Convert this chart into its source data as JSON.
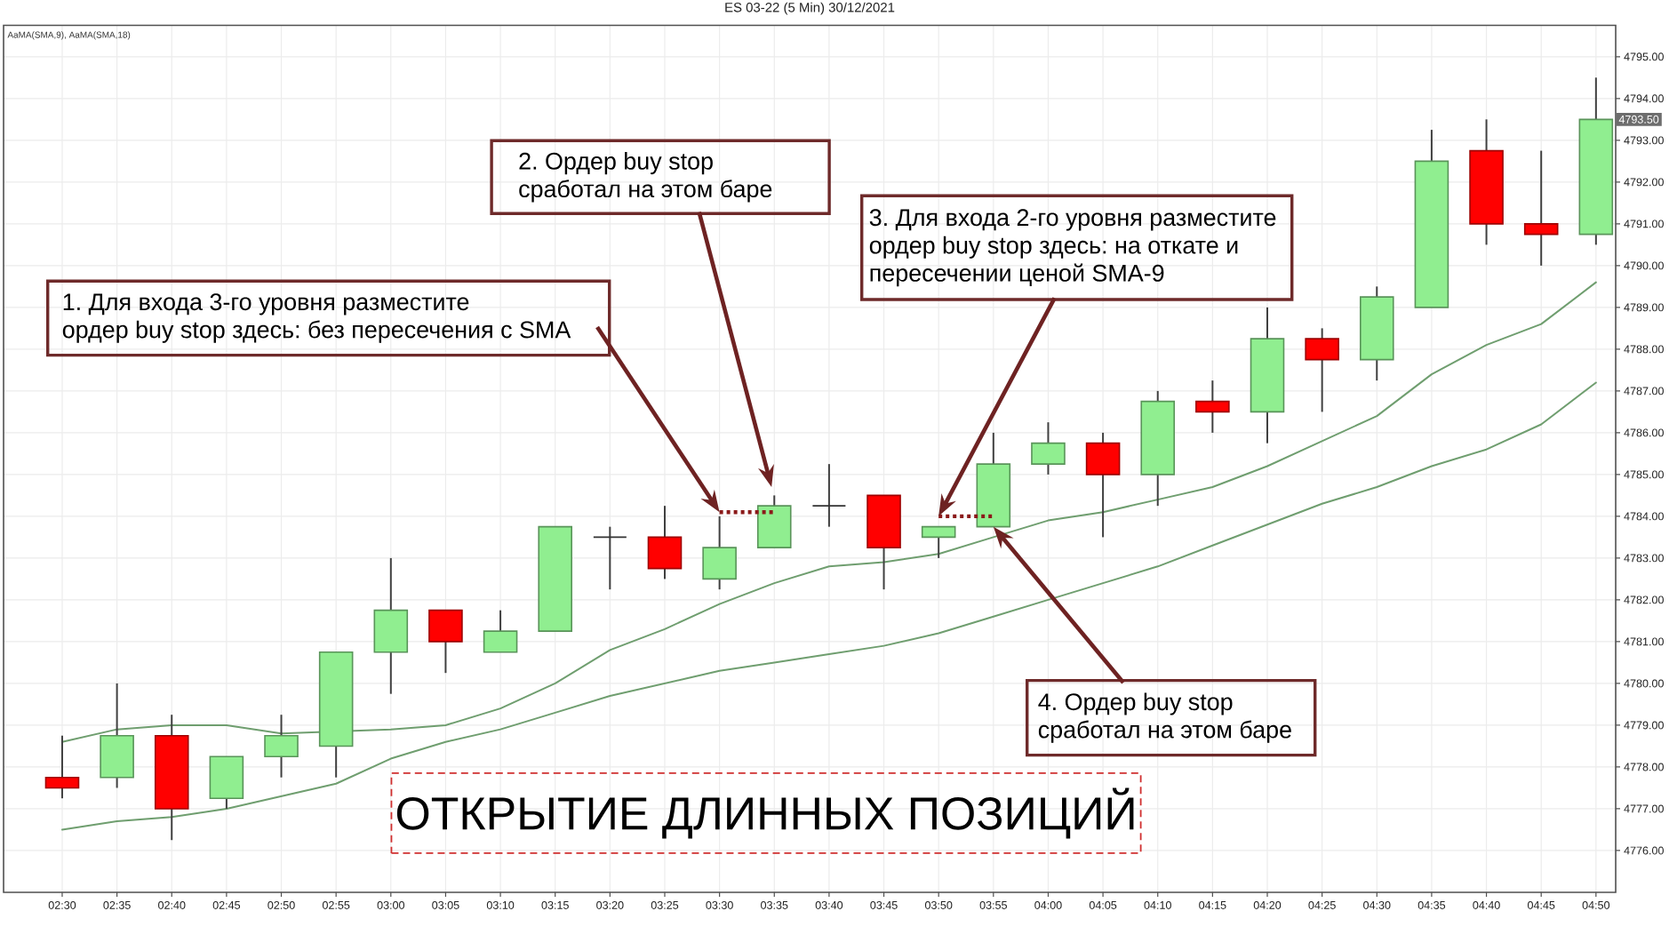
{
  "chart_data": {
    "type": "candlestick",
    "title": "ES 03-22 (5 Min) 30/12/2021",
    "categories": [
      "02:30",
      "02:35",
      "02:40",
      "02:45",
      "02:50",
      "02:55",
      "03:00",
      "03:05",
      "03:10",
      "03:15",
      "03:20",
      "03:25",
      "03:30",
      "03:35",
      "03:40",
      "03:45",
      "03:50",
      "03:55",
      "04:00",
      "04:05",
      "04:10",
      "04:15",
      "04:20",
      "04:25",
      "04:30",
      "04:35",
      "04:40",
      "04:45",
      "04:50"
    ],
    "ohlc": [
      [
        4777.75,
        4778.75,
        4777.25,
        4777.5
      ],
      [
        4777.75,
        4780,
        4777.5,
        4778.75
      ],
      [
        4778.75,
        4779.25,
        4776.25,
        4777
      ],
      [
        4777.25,
        4778.25,
        4777,
        4778.25
      ],
      [
        4778.25,
        4779.25,
        4777.75,
        4778.75
      ],
      [
        4778.5,
        4780.75,
        4777.75,
        4780.75
      ],
      [
        4780.75,
        4783,
        4779.75,
        4781.75
      ],
      [
        4781.75,
        4781.75,
        4780.25,
        4781
      ],
      [
        4780.75,
        4781.75,
        4780.75,
        4781.25
      ],
      [
        4781.25,
        4783.75,
        4781.25,
        4783.75
      ],
      [
        4783.5,
        4783.75,
        4782.25,
        4783.5
      ],
      [
        4783.5,
        4784.25,
        4782.5,
        4782.75
      ],
      [
        4782.5,
        4784,
        4782.25,
        4783.25
      ],
      [
        4783.25,
        4784.5,
        4783.25,
        4784.25
      ],
      [
        4784.25,
        4785.25,
        4783.75,
        4784.25
      ],
      [
        4784.5,
        4784.5,
        4782.25,
        4783.25
      ],
      [
        4783.5,
        4783.75,
        4783,
        4783.75
      ],
      [
        4783.75,
        4786,
        4783.75,
        4785.25
      ],
      [
        4785.25,
        4786.25,
        4785,
        4785.75
      ],
      [
        4785.75,
        4786,
        4783.5,
        4785
      ],
      [
        4785,
        4787,
        4784.25,
        4786.75
      ],
      [
        4786.75,
        4787.25,
        4786,
        4786.5
      ],
      [
        4786.5,
        4789,
        4785.75,
        4788.25
      ],
      [
        4788.25,
        4788.5,
        4786.5,
        4787.75
      ],
      [
        4787.75,
        4789.5,
        4787.25,
        4789.25
      ],
      [
        4789,
        4793.25,
        4789,
        4792.5
      ],
      [
        4792.75,
        4793.5,
        4790.5,
        4791
      ],
      [
        4791,
        4792.75,
        4790,
        4790.75
      ],
      [
        4790.75,
        4794.5,
        4790.5,
        4793.5
      ]
    ],
    "colors": [
      "#ff0000",
      "#90ee90",
      "#ff0000",
      "#90ee90",
      "#90ee90",
      "#90ee90",
      "#90ee90",
      "#ff0000",
      "#90ee90",
      "#90ee90",
      "#333333",
      "#ff0000",
      "#90ee90",
      "#90ee90",
      "#333333",
      "#ff0000",
      "#90ee90",
      "#90ee90",
      "#90ee90",
      "#ff0000",
      "#90ee90",
      "#ff0000",
      "#90ee90",
      "#ff0000",
      "#90ee90",
      "#90ee90",
      "#ff0000",
      "#ff0000",
      "#90ee90"
    ],
    "series": [
      {
        "type": "line",
        "color": "#6f9e6f",
        "values": [
          4778.6,
          4778.9,
          4779.0,
          4779.0,
          4778.8,
          null,
          4778.9,
          4779.0,
          4779.4,
          4780.0,
          4780.8,
          4781.3,
          4781.9,
          4782.4,
          4782.8,
          4782.9,
          4783.1,
          4783.5,
          4783.9,
          4784.1,
          4784.4,
          4784.7,
          4785.2,
          4785.8,
          4786.4,
          4787.4,
          4788.1,
          4788.6,
          4789.6
        ]
      },
      {
        "type": "line",
        "color": "#6f9e6f",
        "values": [
          4776.5,
          4776.7,
          4776.8,
          4777.0,
          4777.3,
          4777.6,
          4778.2,
          4778.6,
          4778.9,
          4779.3,
          4779.7,
          4780.0,
          4780.3,
          4780.5,
          4780.7,
          4780.9,
          4781.2,
          4781.6,
          4782.0,
          4782.4,
          4782.8,
          4783.3,
          4783.8,
          4784.3,
          4784.7,
          4785.2,
          4785.6,
          4786.2,
          4787.2
        ]
      },
      {
        "type": "line",
        "color": "#8b1a1a",
        "line_style": "dotted",
        "x": [
          "03:30",
          "03:35"
        ],
        "values": [
          4784.1,
          4784.1
        ]
      },
      {
        "type": "line",
        "color": "#8b1a1a",
        "line_style": "dotted",
        "x": [
          "03:50",
          "03:55"
        ],
        "values": [
          4784,
          4784
        ]
      }
    ],
    "ylim": [
      4775,
      4795.75
    ],
    "yticks": [
      {
        "value": 4776,
        "label": "4776.00"
      },
      {
        "value": 4777,
        "label": "4777.00"
      },
      {
        "value": 4778,
        "label": "4778.00"
      },
      {
        "value": 4779,
        "label": "4779.00"
      },
      {
        "value": 4780,
        "label": "4780.00"
      },
      {
        "value": 4781,
        "label": "4781.00"
      },
      {
        "value": 4782,
        "label": "4782.00"
      },
      {
        "value": 4783,
        "label": "4783.00"
      },
      {
        "value": 4784,
        "label": "4784.00"
      },
      {
        "value": 4785,
        "label": "4785.00"
      },
      {
        "value": 4786,
        "label": "4786.00"
      },
      {
        "value": 4787,
        "label": "4787.00"
      },
      {
        "value": 4788,
        "label": "4788.00"
      },
      {
        "value": 4789,
        "label": "4789.00"
      },
      {
        "value": 4790,
        "label": "4790.00"
      },
      {
        "value": 4791,
        "label": "4791.00"
      },
      {
        "value": 4792,
        "label": "4792.00"
      },
      {
        "value": 4793,
        "label": "4793.00"
      },
      {
        "value": 4794,
        "label": "4794.00"
      },
      {
        "value": 4795,
        "label": "4795.00"
      }
    ],
    "grid": true,
    "annotations": [
      "AaMA(SMA,9), AaMA(SMA,18)",
      {
        "text": "1. Для входа 3-го уровня разместите ордер buy stop здесь: без пересечения с SMA",
        "x": "03:30",
        "y": 4784.1
      },
      {
        "text": "2. Ордер buy stop сработал на этом баре",
        "x": "03:35",
        "y": 4784.7
      },
      {
        "text": "3. Для входа 2-го уровня разместите ордер buy stop здесь: на откате и пересечении ценой SMA-9",
        "x": "03:50",
        "y": 4784
      },
      {
        "text": "4. Ордер buy stop сработал на этом баре",
        "x": "03:55",
        "y": 4783.75
      },
      "ОТКРЫТИЕ ДЛИННЫХ ПОЗИЦИЙ",
      {
        "text": "4793.50",
        "x": "04:50",
        "y": 4793.5
      }
    ]
  }
}
